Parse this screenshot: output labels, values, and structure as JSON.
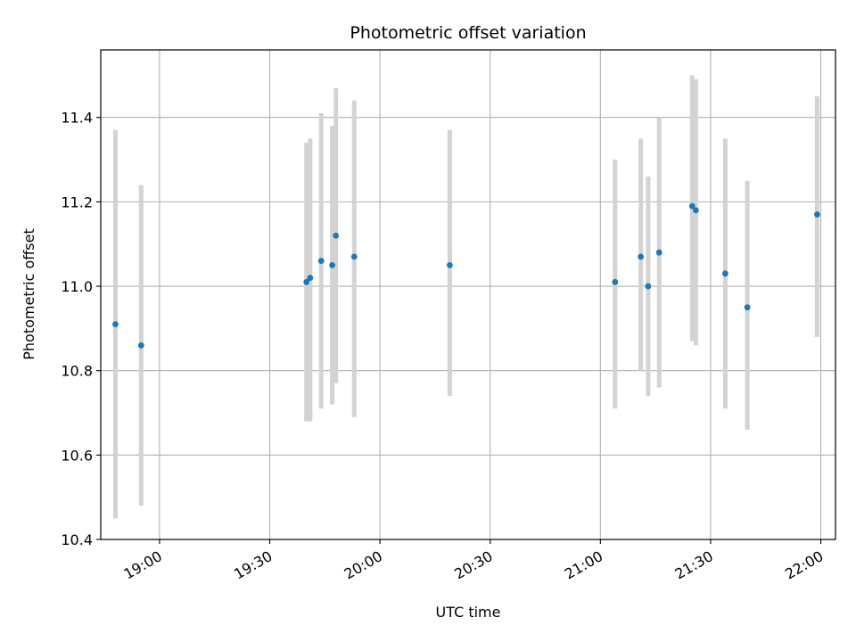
{
  "chart_data": {
    "type": "scatter",
    "title": "Photometric offset variation",
    "xlabel": "UTC time",
    "ylabel": "Photometric offset",
    "x_ticks": [
      "19:00",
      "19:30",
      "20:00",
      "20:30",
      "21:00",
      "21:30",
      "22:00"
    ],
    "y_ticks": [
      "10.4",
      "10.6",
      "10.8",
      "11.0",
      "11.2",
      "11.4"
    ],
    "xlim": [
      "18:44",
      "22:04"
    ],
    "ylim": [
      10.4,
      11.56
    ],
    "grid": true,
    "legend": "none",
    "colors": {
      "point": "#1f77b4",
      "errorbar": "#d3d3d3",
      "grid": "#b0b0b0"
    },
    "points": [
      {
        "x": "18:48",
        "y": 10.91,
        "ylow": 10.45,
        "yhigh": 11.37
      },
      {
        "x": "18:55",
        "y": 10.86,
        "ylow": 10.48,
        "yhigh": 11.24
      },
      {
        "x": "19:40",
        "y": 11.01,
        "ylow": 10.68,
        "yhigh": 11.34
      },
      {
        "x": "19:41",
        "y": 11.02,
        "ylow": 10.68,
        "yhigh": 11.35
      },
      {
        "x": "19:44",
        "y": 11.06,
        "ylow": 10.71,
        "yhigh": 11.41
      },
      {
        "x": "19:47",
        "y": 11.05,
        "ylow": 10.72,
        "yhigh": 11.38
      },
      {
        "x": "19:48",
        "y": 11.12,
        "ylow": 10.77,
        "yhigh": 11.47
      },
      {
        "x": "19:53",
        "y": 11.07,
        "ylow": 10.69,
        "yhigh": 11.44
      },
      {
        "x": "20:19",
        "y": 11.05,
        "ylow": 10.74,
        "yhigh": 11.37
      },
      {
        "x": "21:04",
        "y": 11.01,
        "ylow": 10.71,
        "yhigh": 11.3
      },
      {
        "x": "21:11",
        "y": 11.07,
        "ylow": 10.8,
        "yhigh": 11.35
      },
      {
        "x": "21:13",
        "y": 11.0,
        "ylow": 10.74,
        "yhigh": 11.26
      },
      {
        "x": "21:16",
        "y": 11.08,
        "ylow": 10.76,
        "yhigh": 11.4
      },
      {
        "x": "21:25",
        "y": 11.19,
        "ylow": 10.87,
        "yhigh": 11.5
      },
      {
        "x": "21:26",
        "y": 11.18,
        "ylow": 10.86,
        "yhigh": 11.49
      },
      {
        "x": "21:34",
        "y": 11.03,
        "ylow": 10.71,
        "yhigh": 11.35
      },
      {
        "x": "21:40",
        "y": 10.95,
        "ylow": 10.66,
        "yhigh": 11.25
      },
      {
        "x": "21:59",
        "y": 11.17,
        "ylow": 10.88,
        "yhigh": 11.45
      }
    ]
  }
}
